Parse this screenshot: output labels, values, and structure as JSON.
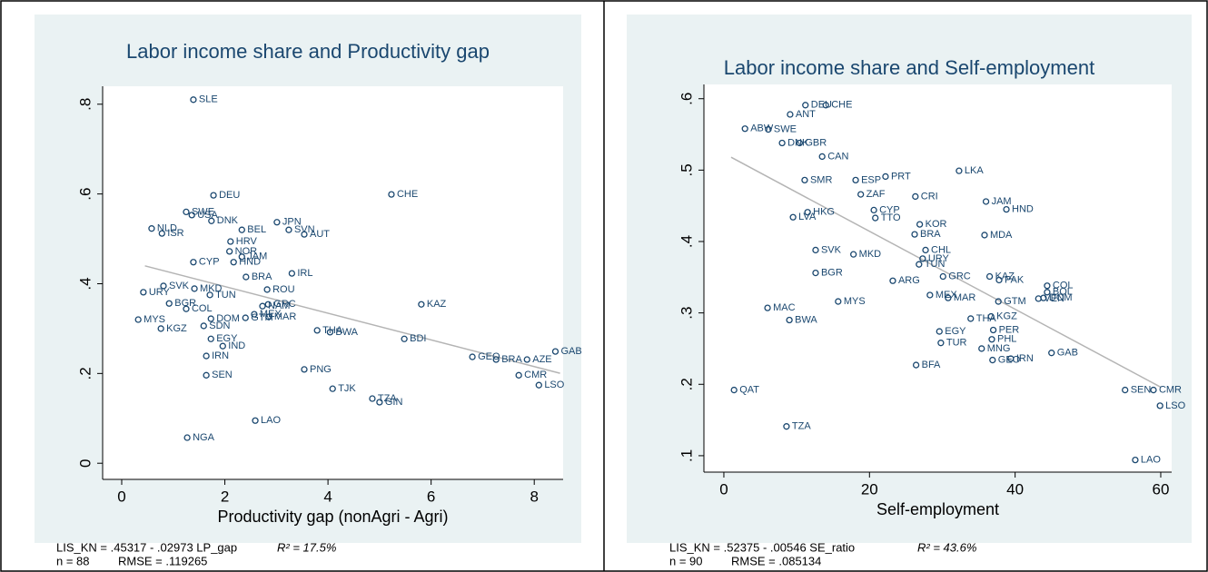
{
  "chart_data": [
    {
      "type": "scatter",
      "title": "Labor income share and Productivity gap",
      "x_label": "Productivity gap (nonAgri - Agri)",
      "color": "#1a476f",
      "fit_color": "#b4b4b4",
      "xlim": [
        -0.37,
        8.56
      ],
      "ylim": [
        -0.036,
        0.84
      ],
      "xticks": [
        0,
        2,
        4,
        6,
        8
      ],
      "yticks": [
        0,
        {
          "value": 0.2,
          "label": ".2"
        },
        {
          "value": 0.4,
          "label": ".4"
        },
        {
          "value": 0.6,
          "label": ".6"
        },
        {
          "value": 0.8,
          "label": ".8"
        }
      ],
      "point_labels": [
        "SLE",
        "DEU",
        "CHE",
        "KAZ",
        "BDI",
        "TJK",
        "TZA",
        "GIN",
        "PNG",
        "LAO",
        "NGA",
        "SEN",
        "GEO",
        "BRA",
        "AZE",
        "GAB",
        "CMR",
        "LSO",
        "THA",
        "BWA",
        "IRL",
        "ROU",
        "NAM",
        "AUT",
        "SVN",
        "JPN",
        "BEL",
        "HRV",
        "NOR",
        "JAM",
        "HND",
        "BRA",
        "GRC",
        "MEX",
        "MAR",
        "IND",
        "IRN",
        "EGY",
        "SDN",
        "TUN",
        "MKD",
        "SVK",
        "URY",
        "KGZ",
        "MYS",
        "NLD",
        "ISR",
        "SWE",
        "USA",
        "DNK",
        "CYP",
        "COL",
        "BGR",
        "DOM",
        "GTM"
      ],
      "x": [
        1.39,
        1.78,
        5.23,
        5.81,
        5.48,
        4.09,
        4.86,
        5.0,
        3.54,
        2.59,
        1.27,
        1.64,
        6.8,
        7.26,
        7.86,
        8.41,
        7.7,
        8.09,
        3.79,
        4.04,
        3.3,
        2.82,
        2.73,
        3.54,
        3.24,
        3.01,
        2.33,
        2.11,
        2.09,
        2.33,
        2.17,
        2.41,
        2.84,
        2.57,
        2.85,
        1.96,
        1.64,
        1.73,
        1.59,
        1.71,
        1.41,
        0.81,
        0.42,
        0.76,
        0.32,
        0.58,
        0.78,
        1.25,
        1.36,
        1.74,
        1.39,
        1.25,
        0.92,
        1.73,
        2.4
      ],
      "values": [
        0.81,
        0.597,
        0.599,
        0.354,
        0.277,
        0.166,
        0.144,
        0.136,
        0.209,
        0.095,
        0.057,
        0.196,
        0.237,
        0.231,
        0.231,
        0.249,
        0.196,
        0.174,
        0.296,
        0.292,
        0.423,
        0.387,
        0.35,
        0.51,
        0.52,
        0.537,
        0.52,
        0.494,
        0.472,
        0.46,
        0.448,
        0.415,
        0.354,
        0.332,
        0.326,
        0.261,
        0.239,
        0.277,
        0.306,
        0.375,
        0.389,
        0.395,
        0.381,
        0.3,
        0.32,
        0.523,
        0.512,
        0.56,
        0.553,
        0.54,
        0.448,
        0.344,
        0.356,
        0.322,
        0.324
      ],
      "fit_line": {
        "x": [
          0.45,
          8.5
        ],
        "y": [
          0.4398,
          0.2005
        ]
      },
      "annotations": [
        "LIS_KN = .45317 - .02973 LP_gap",
        "R² = 17.5%",
        "n = 88",
        "RMSE = .119265"
      ]
    },
    {
      "type": "scatter",
      "title": "Labor income share and Self-employment",
      "x_label": "Self-employment",
      "color": "#1a476f",
      "fit_color": "#b4b4b4",
      "xlim": [
        -2.74,
        61.5
      ],
      "ylim": [
        0.077,
        0.62
      ],
      "xticks": [
        0,
        20,
        40,
        60
      ],
      "yticks": [
        {
          "value": 0.1,
          "label": ".1"
        },
        {
          "value": 0.2,
          "label": ".2"
        },
        {
          "value": 0.3,
          "label": ".3"
        },
        {
          "value": 0.4,
          "label": ".4"
        },
        {
          "value": 0.5,
          "label": ".5"
        },
        {
          "value": 0.6,
          "label": ".6"
        }
      ],
      "point_labels": [
        "DEU",
        "CHE",
        "ANT",
        "ABW",
        "SWE",
        "DNK",
        "GBR",
        "CAN",
        "SMR",
        "ESP",
        "PRT",
        "LKA",
        "CRI",
        "JAM",
        "HND",
        "ZAF",
        "CYP",
        "LVA",
        "HKG",
        "KOR",
        "BRA",
        "MDA",
        "TTO",
        "CHL",
        "SVK",
        "MKD",
        "URY",
        "TUN",
        "BGR",
        "ARG",
        "GRC",
        "KAZ",
        "PAK",
        "COL",
        "BOL",
        "MEX",
        "MAR",
        "GTM",
        "VEN",
        "DOM",
        "MYS",
        "MAC",
        "BWA",
        "THA",
        "KGZ",
        "EGY",
        "PER",
        "PHL",
        "TUR",
        "MNG",
        "GAB",
        "GEO",
        "IRN",
        "BFA",
        "QAT",
        "SEN",
        "CMR",
        "LSO",
        "TZA",
        "LAO"
      ],
      "x": [
        11.2,
        14.0,
        9.1,
        2.9,
        6.1,
        8.0,
        10.4,
        13.5,
        11.1,
        18.1,
        22.2,
        32.3,
        26.3,
        36.0,
        38.8,
        18.8,
        20.6,
        9.5,
        11.5,
        26.9,
        26.2,
        35.8,
        20.8,
        27.7,
        12.6,
        17.8,
        27.3,
        26.8,
        12.6,
        23.2,
        30.1,
        36.5,
        37.8,
        44.4,
        44.4,
        28.3,
        30.8,
        37.7,
        43.2,
        43.9,
        15.7,
        6.0,
        9.0,
        33.9,
        36.7,
        29.6,
        37.0,
        36.8,
        29.8,
        35.4,
        45.0,
        36.9,
        39.4,
        26.4,
        1.4,
        55.1,
        59.0,
        59.9,
        8.6,
        56.5
      ],
      "values": [
        0.591,
        0.591,
        0.578,
        0.558,
        0.557,
        0.538,
        0.538,
        0.519,
        0.486,
        0.486,
        0.491,
        0.499,
        0.463,
        0.456,
        0.445,
        0.466,
        0.444,
        0.434,
        0.441,
        0.424,
        0.41,
        0.409,
        0.433,
        0.388,
        0.388,
        0.382,
        0.376,
        0.368,
        0.356,
        0.345,
        0.351,
        0.351,
        0.346,
        0.338,
        0.329,
        0.325,
        0.321,
        0.316,
        0.32,
        0.321,
        0.316,
        0.307,
        0.29,
        0.292,
        0.295,
        0.274,
        0.276,
        0.263,
        0.258,
        0.25,
        0.244,
        0.234,
        0.236,
        0.227,
        0.192,
        0.192,
        0.192,
        0.17,
        0.141,
        0.094
      ],
      "fit_line": {
        "x": [
          1,
          60
        ],
        "y": [
          0.518,
          0.196
        ]
      },
      "annotations": [
        "LIS_KN = .52375 - .00546 SE_ratio",
        "R² = 43.6%",
        "n = 90",
        "RMSE = .085134"
      ]
    }
  ]
}
